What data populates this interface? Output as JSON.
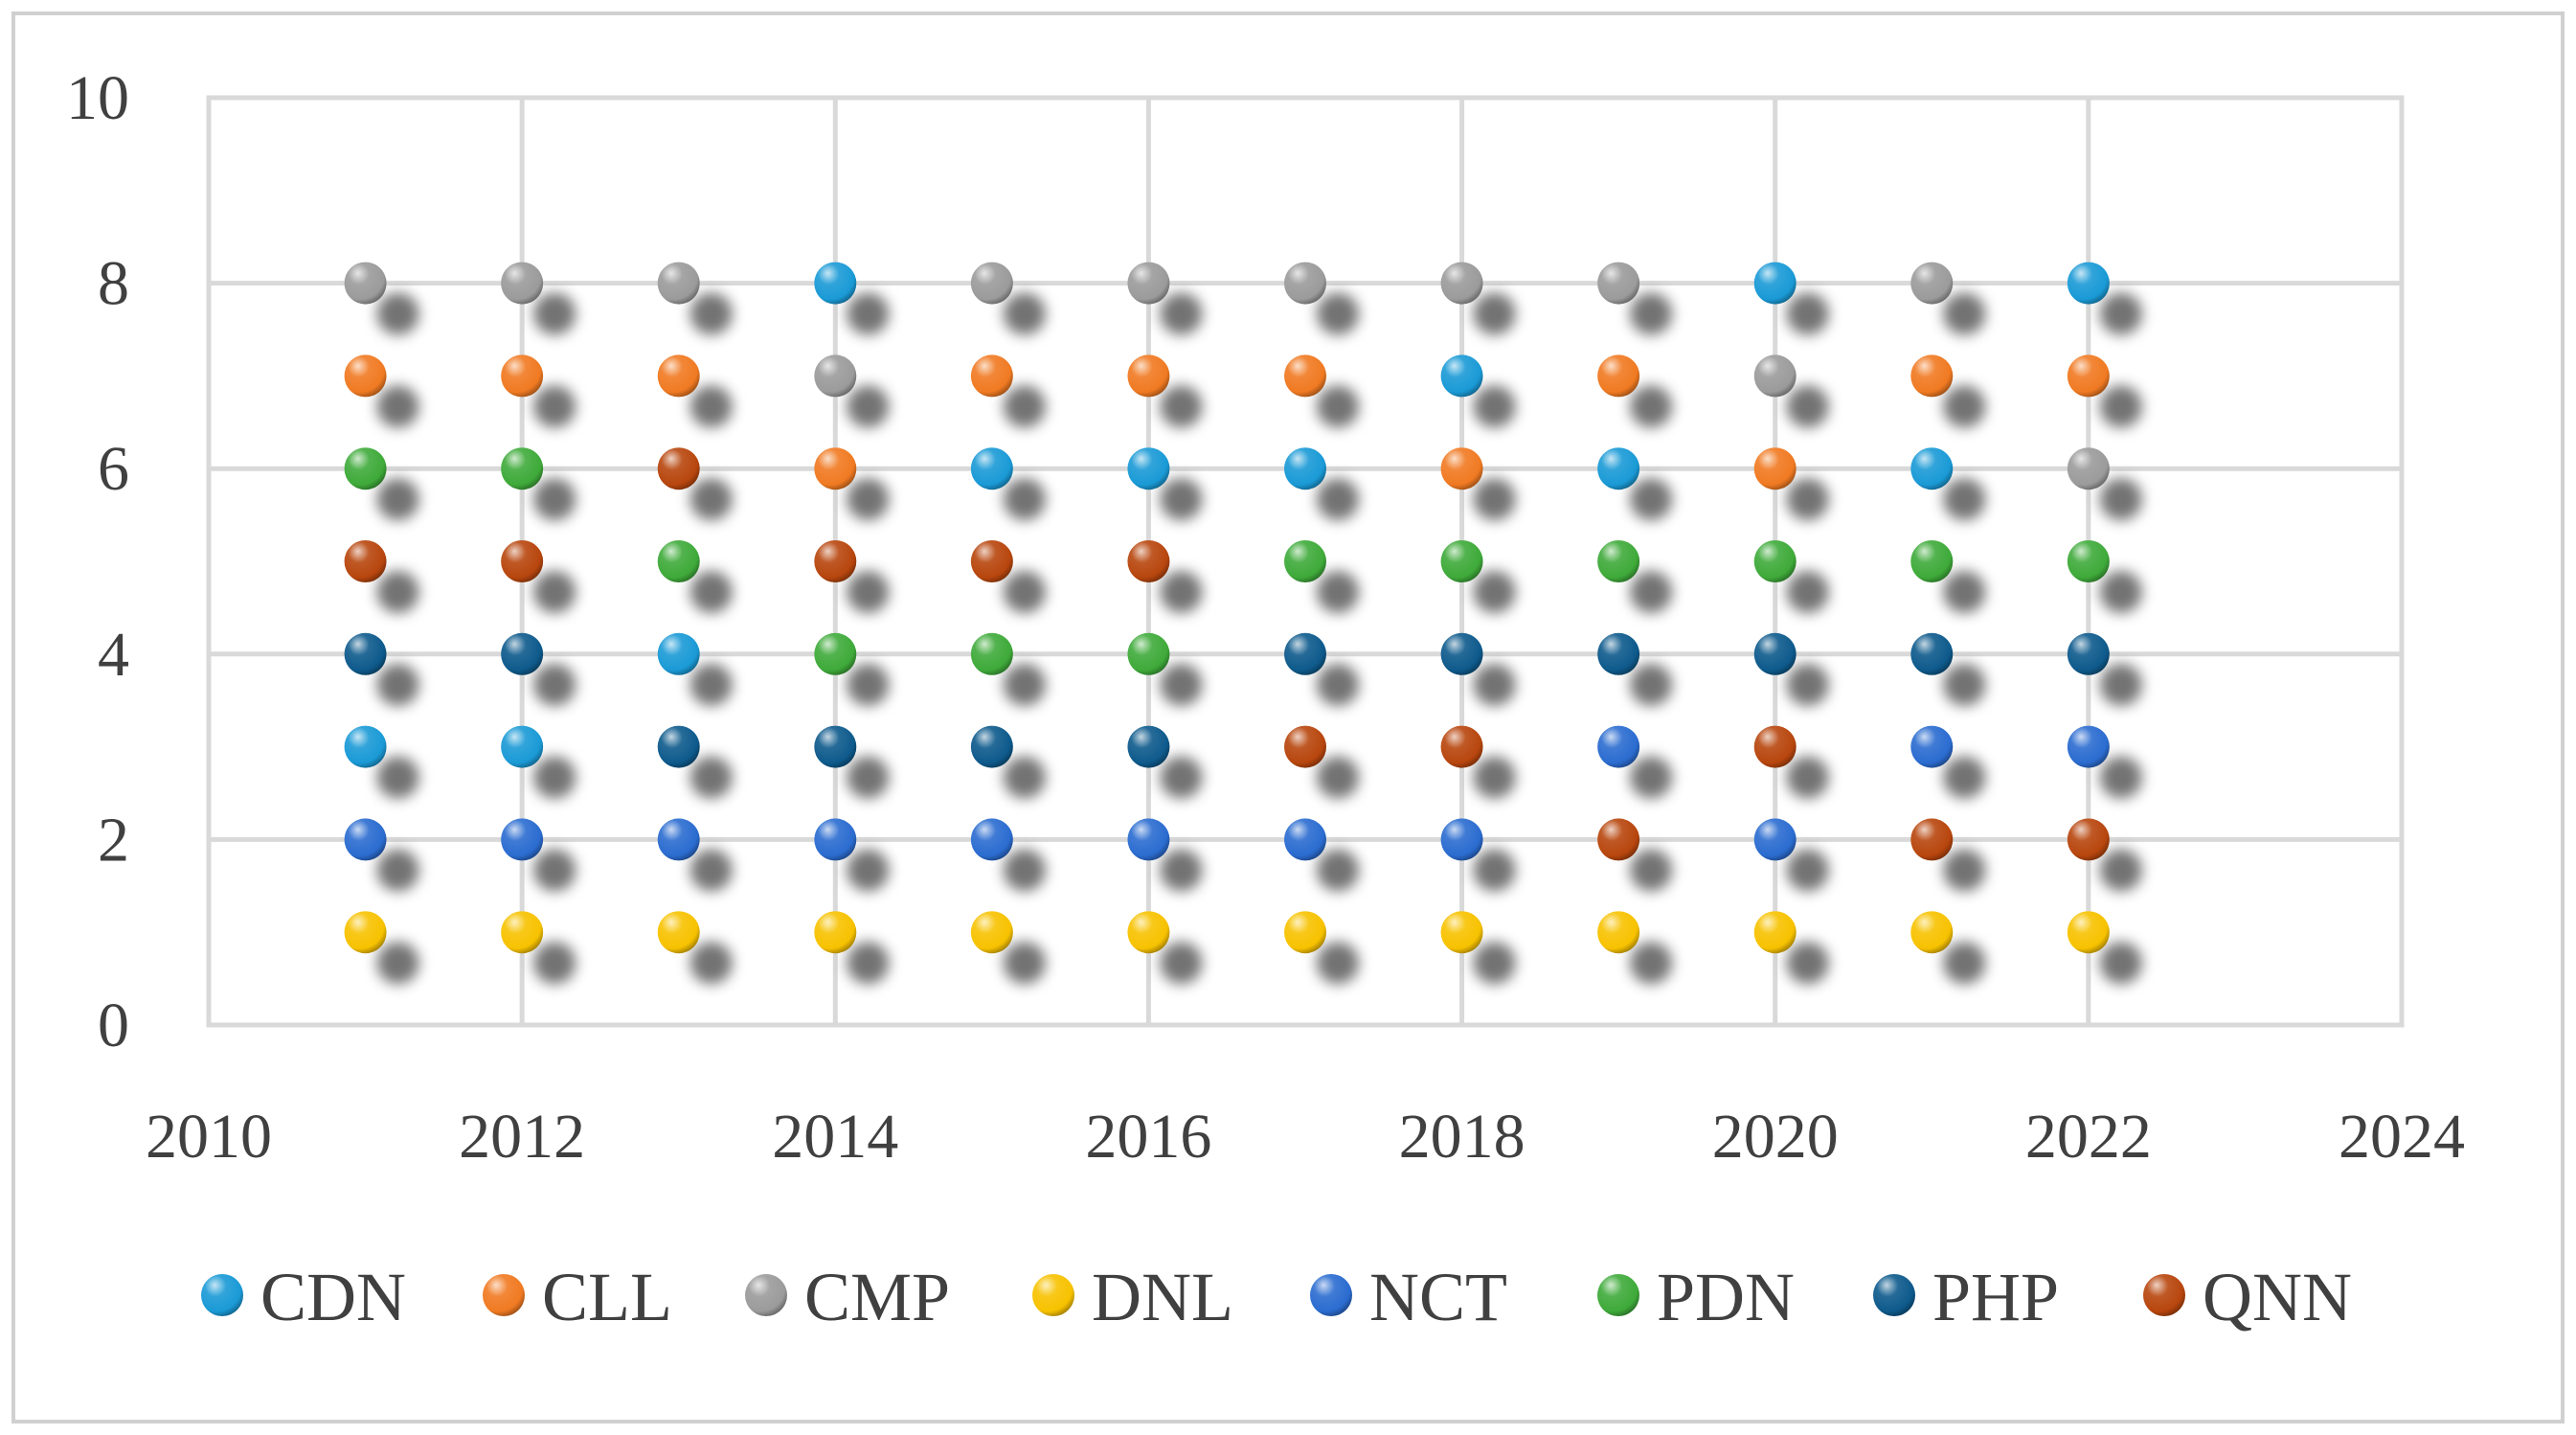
{
  "chart_data": {
    "type": "scatter",
    "title": "",
    "xlabel": "",
    "ylabel": "",
    "xlim": [
      2010,
      2024
    ],
    "ylim": [
      0,
      10
    ],
    "x_ticks": [
      2010,
      2012,
      2014,
      2016,
      2018,
      2020,
      2022,
      2024
    ],
    "y_ticks": [
      0,
      2,
      4,
      6,
      8,
      10
    ],
    "grid": "on",
    "legend_position": "bottom",
    "marker_style": "3d-sphere-with-drop-shadow",
    "x": [
      2011,
      2012,
      2013,
      2014,
      2015,
      2016,
      2017,
      2018,
      2019,
      2020,
      2021,
      2022
    ],
    "series": [
      {
        "name": "CDN",
        "color": "#1a9ad6",
        "values": [
          3,
          3,
          4,
          8,
          6,
          6,
          6,
          7,
          6,
          8,
          6,
          8
        ]
      },
      {
        "name": "CLL",
        "color": "#f07a22",
        "values": [
          7,
          7,
          7,
          6,
          7,
          7,
          7,
          6,
          7,
          6,
          7,
          7
        ]
      },
      {
        "name": "CMP",
        "color": "#9b9b9b",
        "values": [
          8,
          8,
          8,
          7,
          8,
          8,
          8,
          8,
          8,
          7,
          8,
          6
        ]
      },
      {
        "name": "DNL",
        "color": "#f7c200",
        "values": [
          1,
          1,
          1,
          1,
          1,
          1,
          1,
          1,
          1,
          1,
          1,
          1
        ]
      },
      {
        "name": "NCT",
        "color": "#2b6cd0",
        "values": [
          2,
          2,
          2,
          2,
          2,
          2,
          2,
          2,
          3,
          2,
          3,
          3
        ]
      },
      {
        "name": "PDN",
        "color": "#3faa3a",
        "values": [
          6,
          6,
          5,
          4,
          4,
          4,
          5,
          5,
          5,
          5,
          5,
          5
        ]
      },
      {
        "name": "PHP",
        "color": "#0e5a8c",
        "values": [
          4,
          4,
          3,
          3,
          3,
          3,
          4,
          4,
          4,
          4,
          4,
          4
        ]
      },
      {
        "name": "QNN",
        "color": "#b8460e",
        "values": [
          5,
          5,
          6,
          5,
          5,
          5,
          3,
          3,
          2,
          3,
          2,
          2
        ]
      }
    ]
  }
}
